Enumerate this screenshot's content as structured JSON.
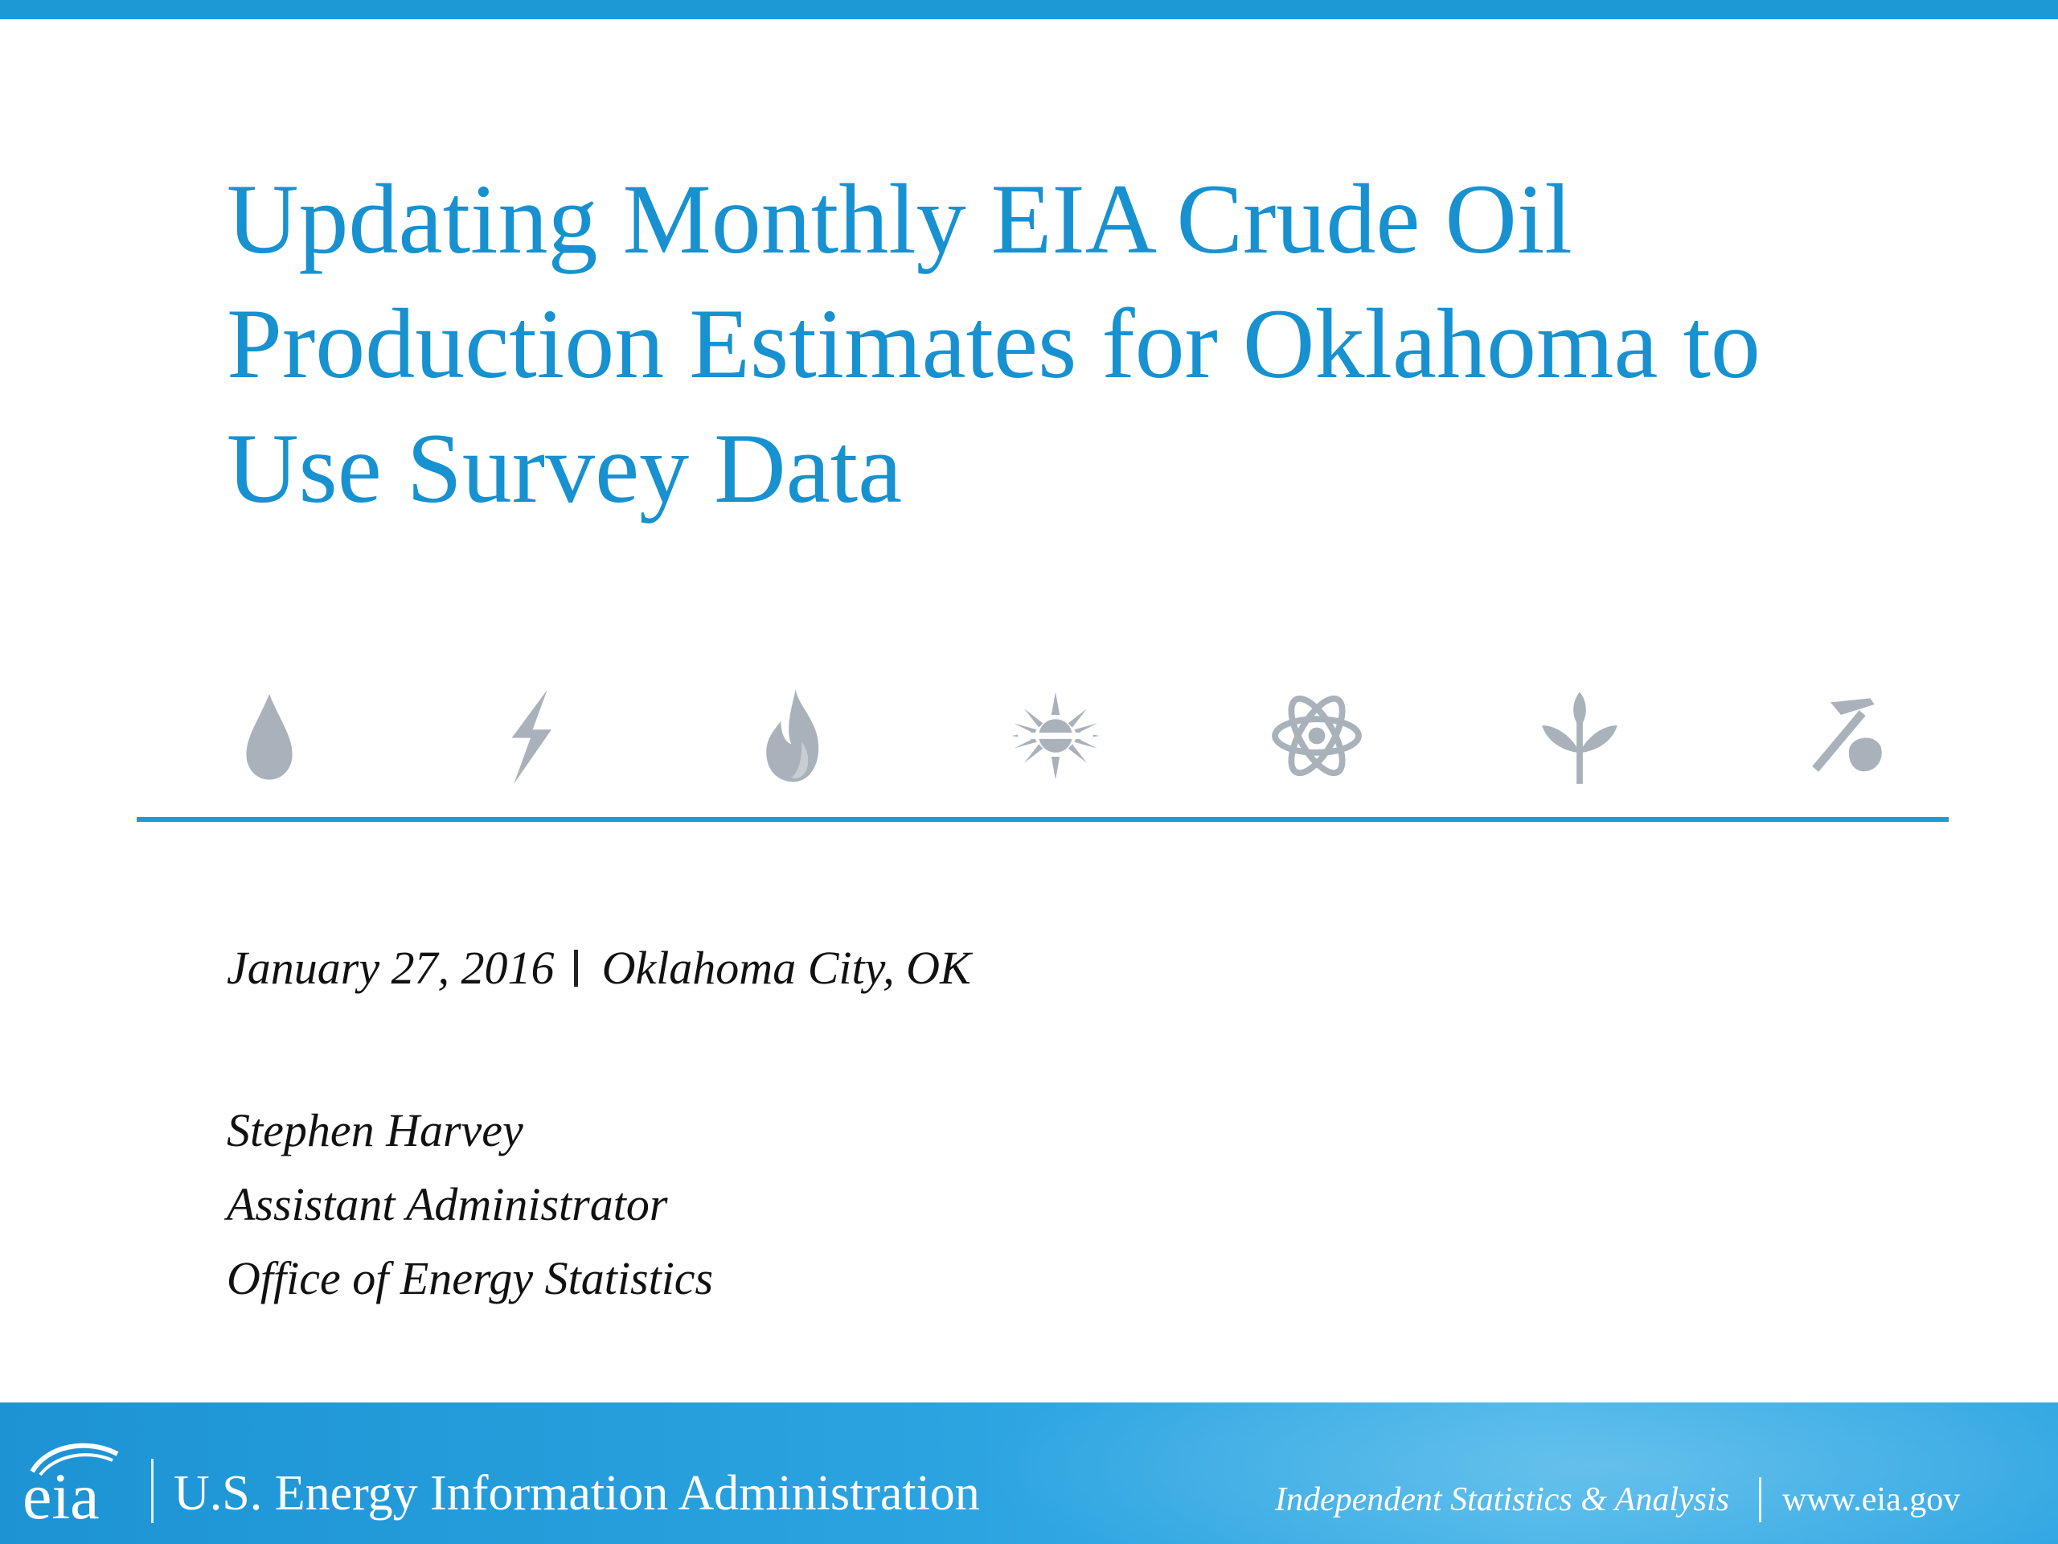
{
  "title_lines": [
    "Updating Monthly EIA Crude Oil",
    "Production Estimates for Oklahoma to",
    "Use Survey Data"
  ],
  "event": {
    "date": "January 27, 2016",
    "location": "Oklahoma City, OK"
  },
  "presenter": {
    "name": "Stephen Harvey",
    "role": "Assistant Administrator",
    "office": "Office of Energy Statistics"
  },
  "icons": [
    "oil-drop-icon",
    "lightning-icon",
    "flame-icon",
    "sun-icon",
    "atom-icon",
    "plant-icon",
    "mining-pick-icon"
  ],
  "footer": {
    "logo_text": "eia",
    "agency": "U.S. Energy Information Administration",
    "tagline": "Independent Statistics & Analysis",
    "website": "www.eia.gov"
  },
  "colors": {
    "accent": "#1b9ad6",
    "title": "#1791d0",
    "icon": "#a9b2bb",
    "text": "#111111"
  }
}
